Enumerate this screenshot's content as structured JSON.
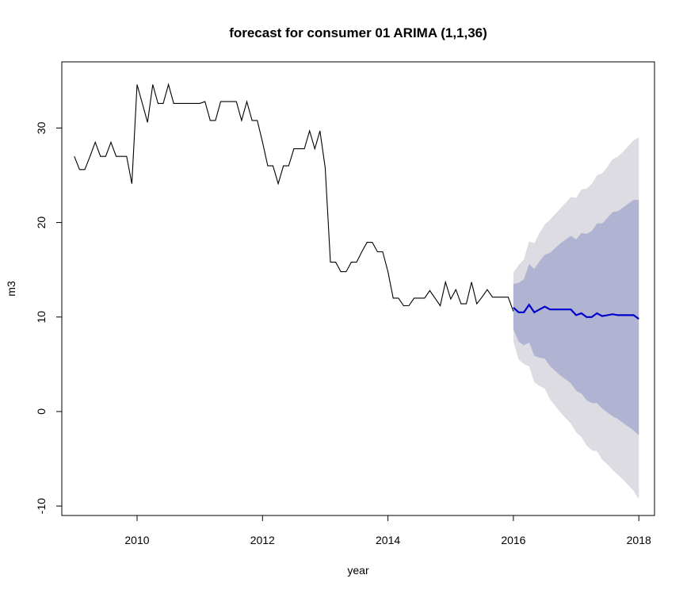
{
  "chart_data": {
    "type": "line",
    "title": "forecast for consumer 01 ARIMA (1,1,36)",
    "xlabel": "year",
    "ylabel": "m3",
    "xlim": [
      2008.8,
      2018.25
    ],
    "ylim": [
      -11.0,
      37.0
    ],
    "x_ticks": [
      2010,
      2012,
      2014,
      2016,
      2018
    ],
    "y_ticks": [
      -10,
      0,
      10,
      20,
      30
    ],
    "grid": false,
    "legend": "none",
    "colors": {
      "observed": "#000000",
      "forecast": "#0000cc",
      "band80": "#b0b4d2",
      "band95": "#dcdce2"
    },
    "observed": {
      "start": 2009.0,
      "step": 0.0833333,
      "values": [
        27.0,
        25.6,
        25.6,
        27.0,
        28.5,
        27.0,
        27.0,
        28.5,
        27.0,
        27.0,
        27.0,
        24.1,
        34.6,
        32.6,
        30.6,
        34.6,
        32.6,
        32.6,
        34.6,
        32.6,
        32.6,
        32.6,
        32.6,
        32.6,
        32.6,
        32.8,
        30.8,
        30.8,
        32.8,
        32.8,
        32.8,
        32.8,
        30.8,
        32.8,
        30.8,
        30.8,
        28.5,
        26.0,
        26.0,
        24.1,
        26.0,
        26.0,
        27.8,
        27.8,
        27.8,
        29.7,
        27.8,
        29.7,
        25.8,
        15.8,
        15.8,
        14.8,
        14.8,
        15.8,
        15.8,
        16.9,
        17.9,
        17.9,
        16.9,
        16.9,
        14.8,
        12.0,
        12.0,
        11.2,
        11.2,
        12.0,
        12.0,
        12.0,
        12.8,
        12.0,
        11.2,
        13.7,
        11.9,
        12.9,
        11.4,
        11.4,
        13.7,
        11.4,
        12.1,
        12.9,
        12.1,
        12.1,
        12.1,
        12.1,
        10.6
      ]
    },
    "forecast": {
      "start": 2016.0,
      "step": 0.0833333,
      "mean": [
        11.0,
        10.5,
        10.5,
        11.3,
        10.5,
        10.8,
        11.1,
        10.8,
        10.8,
        10.8,
        10.8,
        10.8,
        10.2,
        10.4,
        10.0,
        10.0,
        10.4,
        10.1,
        10.2,
        10.3,
        10.2,
        10.2,
        10.2,
        10.2,
        9.8
      ],
      "lower80": [
        8.7,
        7.4,
        7.0,
        7.3,
        5.9,
        5.7,
        5.6,
        4.8,
        4.3,
        3.8,
        3.4,
        3.0,
        2.2,
        1.9,
        1.2,
        0.9,
        0.9,
        0.3,
        -0.1,
        -0.5,
        -0.8,
        -1.2,
        -1.6,
        -2.0,
        -2.5
      ],
      "upper80": [
        13.5,
        13.6,
        14.0,
        15.6,
        15.1,
        15.9,
        16.6,
        16.8,
        17.3,
        17.8,
        18.2,
        18.6,
        18.2,
        18.9,
        18.8,
        19.1,
        19.9,
        19.9,
        20.5,
        21.1,
        21.2,
        21.6,
        22.0,
        22.4,
        22.4
      ],
      "lower95": [
        7.4,
        5.5,
        5.0,
        4.8,
        3.1,
        2.7,
        2.4,
        1.3,
        0.6,
        -0.1,
        -0.7,
        -1.3,
        -2.2,
        -2.7,
        -3.6,
        -4.1,
        -4.2,
        -5.1,
        -5.6,
        -6.2,
        -6.7,
        -7.2,
        -7.8,
        -8.4,
        -9.3
      ],
      "upper95": [
        14.7,
        15.5,
        16.1,
        18.0,
        17.8,
        18.9,
        19.8,
        20.3,
        20.9,
        21.5,
        22.1,
        22.7,
        22.6,
        23.5,
        23.6,
        24.1,
        25.0,
        25.2,
        25.9,
        26.7,
        27.0,
        27.5,
        28.1,
        28.7,
        29.0
      ]
    }
  }
}
